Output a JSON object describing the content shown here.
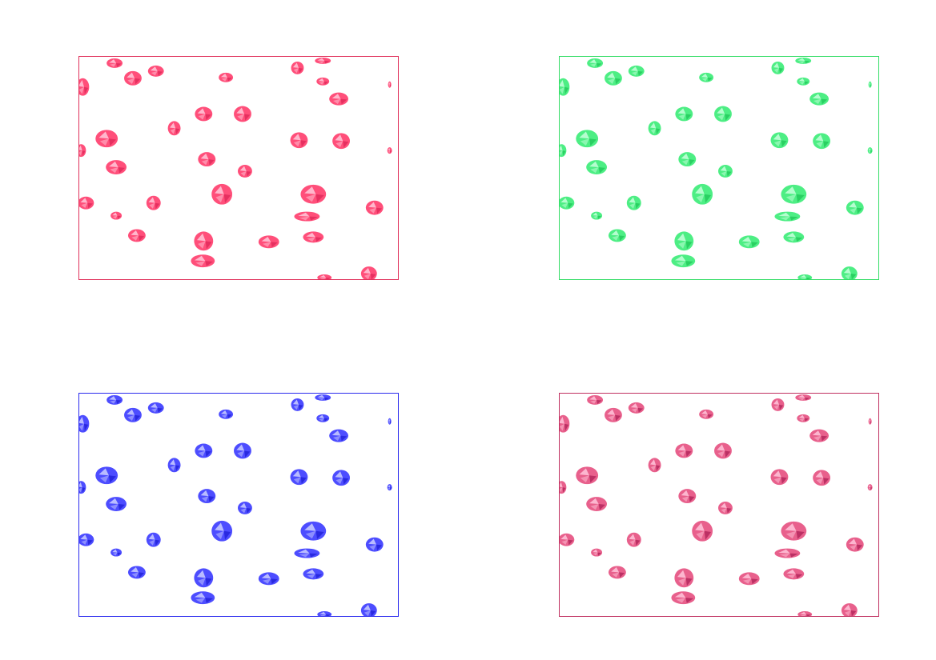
{
  "panels": [
    {
      "name": "crystals-panel-red",
      "border": "#e0305a",
      "fill": "#ff4f7a",
      "light": "#ffc9da",
      "dark": "#e0285a"
    },
    {
      "name": "crystals-panel-green",
      "border": "#33dd66",
      "fill": "#4dee84",
      "light": "#c8ffdc",
      "dark": "#22c85a"
    },
    {
      "name": "crystals-panel-blue",
      "border": "#2a2aee",
      "fill": "#4d4dff",
      "light": "#ccd0ff",
      "dark": "#2020d8"
    },
    {
      "name": "crystals-panel-magenta",
      "border": "#c03060",
      "fill": "#e8608c",
      "light": "#ffc6da",
      "dark": "#b0245a"
    }
  ]
}
